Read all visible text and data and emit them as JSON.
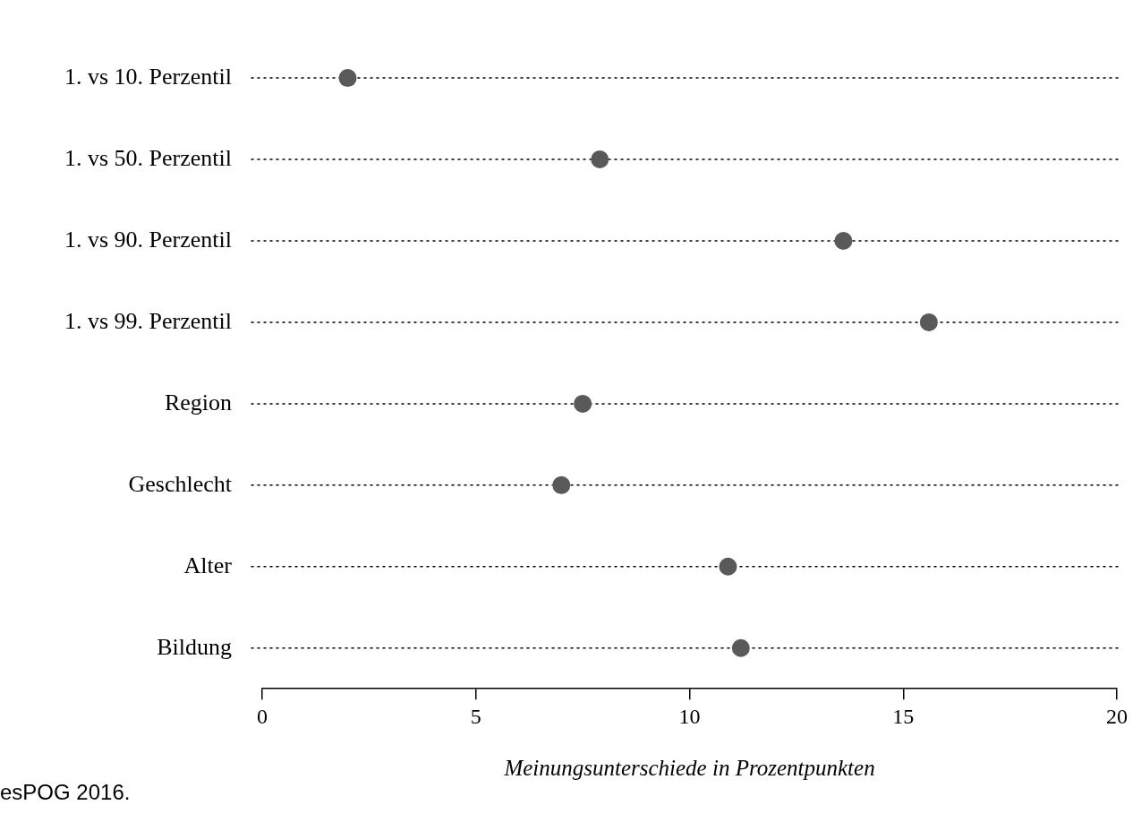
{
  "chart_data": {
    "type": "scatter",
    "orientation": "horizontal",
    "categories": [
      "1. vs 10. Perzentil",
      "1. vs 50. Perzentil",
      "1. vs 90. Perzentil",
      "1. vs 99. Perzentil",
      "Region",
      "Geschlecht",
      "Alter",
      "Bildung"
    ],
    "values": [
      2.0,
      7.9,
      13.6,
      15.6,
      7.5,
      7.0,
      10.9,
      11.2
    ],
    "color": "#595959",
    "marker": "circle",
    "grid": "y",
    "line_style": "dotted",
    "xlim": [
      0,
      20
    ],
    "xticks": [
      0,
      5,
      10,
      15,
      20
    ],
    "xlabel": "Meinungsunterschiede in Prozentpunkten",
    "annotations": [
      "esPOG 2016."
    ]
  }
}
